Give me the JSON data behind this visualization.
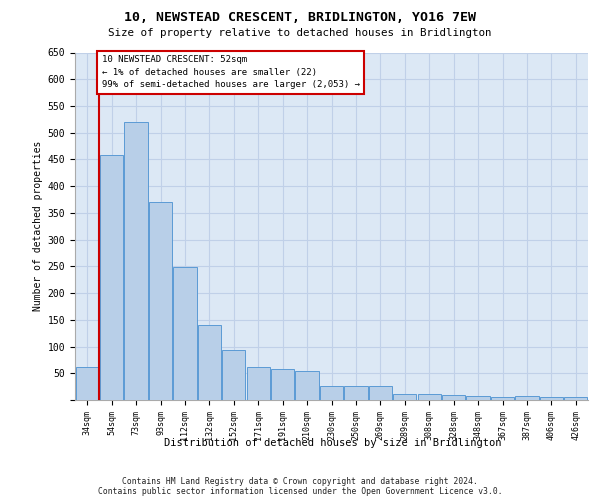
{
  "title": "10, NEWSTEAD CRESCENT, BRIDLINGTON, YO16 7EW",
  "subtitle": "Size of property relative to detached houses in Bridlington",
  "xlabel": "Distribution of detached houses by size in Bridlington",
  "ylabel": "Number of detached properties",
  "bar_labels": [
    "34sqm",
    "54sqm",
    "73sqm",
    "93sqm",
    "112sqm",
    "132sqm",
    "152sqm",
    "171sqm",
    "191sqm",
    "210sqm",
    "230sqm",
    "250sqm",
    "269sqm",
    "289sqm",
    "308sqm",
    "328sqm",
    "348sqm",
    "367sqm",
    "387sqm",
    "406sqm",
    "426sqm"
  ],
  "bar_values": [
    62,
    458,
    520,
    370,
    248,
    140,
    93,
    62,
    58,
    55,
    27,
    26,
    26,
    12,
    12,
    10,
    8,
    5,
    7,
    5,
    5
  ],
  "bar_color": "#b8cfe8",
  "bar_edge_color": "#5b9bd5",
  "highlight_color": "#cc0000",
  "annotation_line1": "10 NEWSTEAD CRESCENT: 52sqm",
  "annotation_line2": "← 1% of detached houses are smaller (22)",
  "annotation_line3": "99% of semi-detached houses are larger (2,053) →",
  "annotation_box_color": "#cc0000",
  "ylim": [
    0,
    650
  ],
  "yticks": [
    0,
    50,
    100,
    150,
    200,
    250,
    300,
    350,
    400,
    450,
    500,
    550,
    600,
    650
  ],
  "grid_color": "#c0d0e8",
  "background_color": "#dce8f5",
  "footer_line1": "Contains HM Land Registry data © Crown copyright and database right 2024.",
  "footer_line2": "Contains public sector information licensed under the Open Government Licence v3.0."
}
